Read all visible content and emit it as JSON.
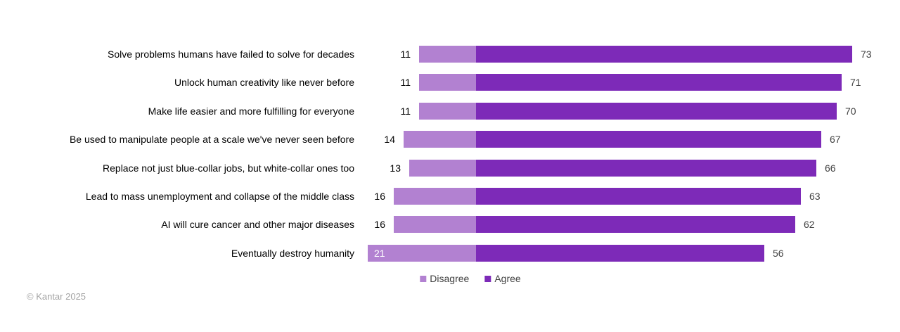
{
  "chart_data": {
    "type": "bar",
    "subtype": "horizontal-diverging-stacked",
    "title": "",
    "categories": [
      "Solve problems humans have failed to solve for decades",
      "Unlock human creativity like never before",
      "Make life easier and more fulfilling for everyone",
      "Be used to manipulate people at a scale we've never seen before",
      "Replace not just blue-collar jobs, but white-collar ones too",
      "Lead to mass unemployment and collapse of the middle class",
      "AI will cure cancer and other major diseases",
      "Eventually destroy humanity"
    ],
    "series": [
      {
        "name": "Disagree",
        "color": "#b281d1",
        "direction": "left",
        "values": [
          11,
          11,
          11,
          14,
          13,
          16,
          16,
          21
        ],
        "label_inside": [
          false,
          false,
          false,
          false,
          false,
          false,
          false,
          true
        ]
      },
      {
        "name": "Agree",
        "color": "#7d2ab8",
        "direction": "right",
        "values": [
          73,
          71,
          70,
          67,
          66,
          63,
          62,
          56
        ],
        "label_inside": [
          false,
          false,
          false,
          false,
          false,
          false,
          false,
          false
        ]
      }
    ],
    "legend_position": "bottom-center",
    "value_labels": true,
    "grid": false,
    "axis_visible": false
  },
  "footer": {
    "copyright": "© Kantar 2025"
  },
  "colors": {
    "background": "#ffffff",
    "category_label": "#000000",
    "value_label_left": "#000000",
    "value_label_right": "#404040",
    "value_label_inside": "#ffffff",
    "legend_text": "#404040",
    "footer_text": "#a3a3a3"
  }
}
